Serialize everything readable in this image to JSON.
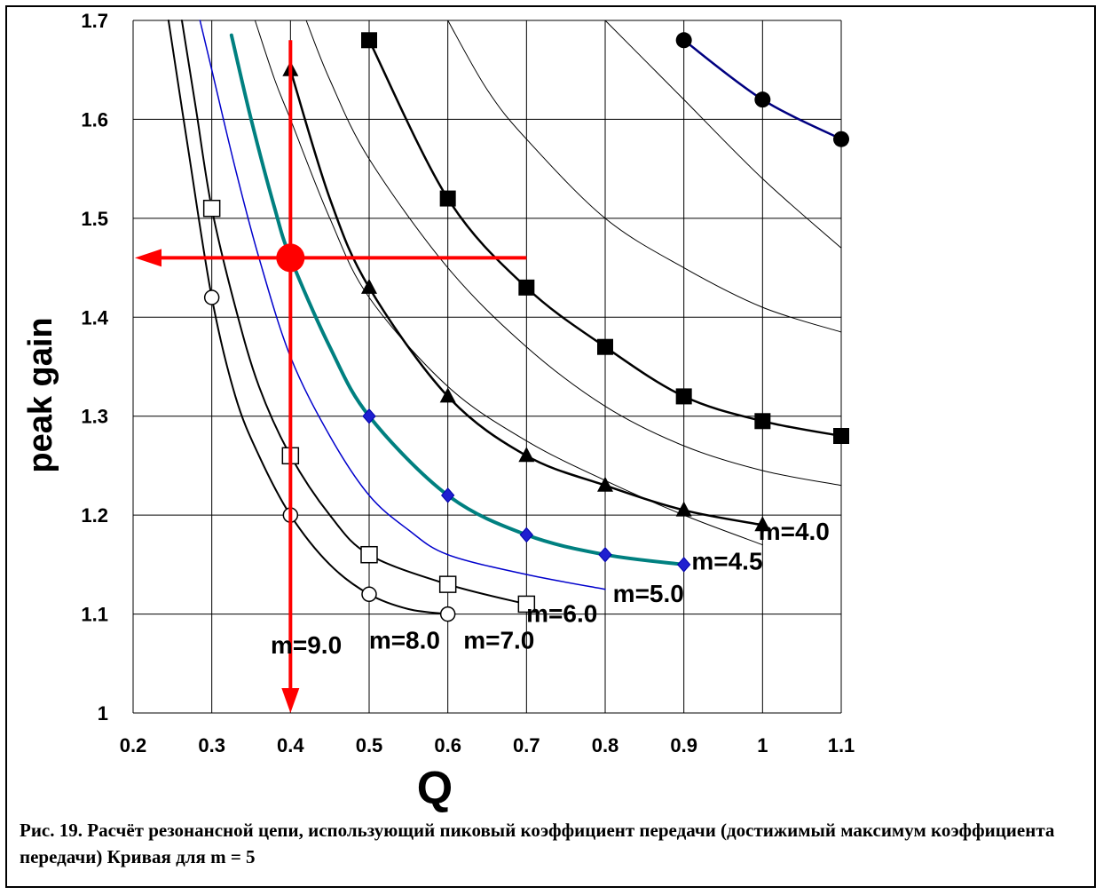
{
  "caption": "Рис. 19. Расчёт резонансной цепи, использующий пиковый коэффициент передачи (достижимый максимум коэффициента передачи) Кривая для m = 5",
  "chart_data": {
    "type": "line",
    "xlabel": "Q",
    "ylabel": "peak gain",
    "xlim": [
      0.2,
      1.1
    ],
    "ylim": [
      1.0,
      1.7
    ],
    "x_ticks": [
      "0.2",
      "0.3",
      "0.4",
      "0.5",
      "0.6",
      "0.7",
      "0.8",
      "0.9",
      "1",
      "1.1"
    ],
    "y_ticks": [
      "1",
      "1.1",
      "1.2",
      "1.3",
      "1.4",
      "1.5",
      "1.6",
      "1.7"
    ],
    "grid": true,
    "series": [
      {
        "name": "m=9.0",
        "color": "#000000",
        "marker": "open-circle",
        "width": 2,
        "x": [
          0.245,
          0.27,
          0.3,
          0.33,
          0.36,
          0.4,
          0.45,
          0.5,
          0.55,
          0.6
        ],
        "y": [
          1.7,
          1.57,
          1.42,
          1.32,
          1.26,
          1.2,
          1.15,
          1.12,
          1.105,
          1.1
        ],
        "markers_x": [
          0.3,
          0.4,
          0.5,
          0.6
        ],
        "markers_y": [
          1.42,
          1.2,
          1.12,
          1.1
        ]
      },
      {
        "name": "m=8.0",
        "color": "#000000",
        "marker": "open-square",
        "width": 2,
        "x": [
          0.262,
          0.28,
          0.3,
          0.33,
          0.36,
          0.4,
          0.45,
          0.5,
          0.6,
          0.7
        ],
        "y": [
          1.7,
          1.61,
          1.51,
          1.41,
          1.33,
          1.26,
          1.2,
          1.16,
          1.13,
          1.11
        ],
        "markers_x": [
          0.3,
          0.4,
          0.5,
          0.6,
          0.7
        ],
        "markers_y": [
          1.51,
          1.26,
          1.16,
          1.13,
          1.11
        ]
      },
      {
        "name": "m=7.0",
        "color": "#0000cc",
        "marker": "none",
        "width": 1.5,
        "x": [
          0.285,
          0.3,
          0.33,
          0.36,
          0.4,
          0.45,
          0.5,
          0.55,
          0.6,
          0.7,
          0.8
        ],
        "y": [
          1.7,
          1.65,
          1.55,
          1.46,
          1.36,
          1.28,
          1.22,
          1.185,
          1.16,
          1.14,
          1.125
        ]
      },
      {
        "name": "m=6.0",
        "color": "#008080",
        "marker": "diamond",
        "width": 4,
        "x": [
          0.325,
          0.35,
          0.38,
          0.4,
          0.45,
          0.5,
          0.6,
          0.7,
          0.8,
          0.9
        ],
        "y": [
          1.685,
          1.6,
          1.51,
          1.46,
          1.37,
          1.3,
          1.22,
          1.18,
          1.16,
          1.15
        ],
        "markers_x": [
          0.5,
          0.6,
          0.7,
          0.8,
          0.9
        ],
        "markers_y": [
          1.3,
          1.22,
          1.18,
          1.16,
          1.15
        ]
      },
      {
        "name": "m=5.0",
        "color": "#000000",
        "marker": "none",
        "width": 1,
        "x": [
          0.355,
          0.38,
          0.4,
          0.45,
          0.5,
          0.6,
          0.7,
          0.8,
          0.9,
          1.0
        ],
        "y": [
          1.7,
          1.64,
          1.6,
          1.5,
          1.42,
          1.33,
          1.275,
          1.235,
          1.2,
          1.17
        ]
      },
      {
        "name": "m=4.5",
        "color": "#000000",
        "marker": "triangle",
        "width": 2.5,
        "x": [
          0.4,
          0.45,
          0.5,
          0.6,
          0.7,
          0.8,
          0.9,
          1.0
        ],
        "y": [
          1.65,
          1.52,
          1.43,
          1.32,
          1.26,
          1.23,
          1.205,
          1.19
        ],
        "markers_x": [
          0.4,
          0.5,
          0.6,
          0.7,
          0.8,
          0.9,
          1.0
        ],
        "markers_y": [
          1.65,
          1.43,
          1.32,
          1.26,
          1.23,
          1.205,
          1.19
        ]
      },
      {
        "name": "m=4.0",
        "color": "#000000",
        "marker": "none",
        "width": 1,
        "x": [
          0.42,
          0.45,
          0.5,
          0.6,
          0.7,
          0.8,
          0.9,
          1.0,
          1.1
        ],
        "y": [
          1.7,
          1.64,
          1.56,
          1.45,
          1.37,
          1.31,
          1.27,
          1.245,
          1.23
        ]
      },
      {
        "name": "",
        "color": "#000000",
        "marker": "square",
        "width": 2.5,
        "x": [
          0.5,
          0.6,
          0.7,
          0.8,
          0.9,
          1.0,
          1.1
        ],
        "y": [
          1.68,
          1.52,
          1.43,
          1.37,
          1.32,
          1.295,
          1.28
        ],
        "markers_x": [
          0.5,
          0.6,
          0.7,
          0.8,
          0.9,
          1.0,
          1.1
        ],
        "markers_y": [
          1.68,
          1.52,
          1.43,
          1.37,
          1.32,
          1.295,
          1.28
        ]
      },
      {
        "name": "",
        "color": "#000000",
        "marker": "none",
        "width": 1,
        "x": [
          0.6,
          0.65,
          0.7,
          0.8,
          0.9,
          1.0,
          1.1
        ],
        "y": [
          1.7,
          1.63,
          1.58,
          1.5,
          1.45,
          1.41,
          1.385
        ]
      },
      {
        "name": "",
        "color": "#000000",
        "marker": "none",
        "width": 1,
        "x": [
          0.8,
          0.85,
          0.9,
          1.0,
          1.1
        ],
        "y": [
          1.7,
          1.66,
          1.62,
          1.54,
          1.47
        ]
      },
      {
        "name": "",
        "color": "#000080",
        "marker": "filled-circle",
        "width": 2.5,
        "x": [
          0.9,
          1.0,
          1.1
        ],
        "y": [
          1.68,
          1.62,
          1.58
        ],
        "markers_x": [
          0.9,
          1.0,
          1.1
        ],
        "markers_y": [
          1.68,
          1.62,
          1.58
        ]
      }
    ],
    "labels": [
      {
        "text": "m=9.0",
        "x": 0.42,
        "y": 1.06
      },
      {
        "text": "m=8.0",
        "x": 0.545,
        "y": 1.065
      },
      {
        "text": "m=7.0",
        "x": 0.665,
        "y": 1.065
      },
      {
        "text": "m=6.0",
        "x": 0.745,
        "y": 1.092
      },
      {
        "text": "m=5.0",
        "x": 0.855,
        "y": 1.112
      },
      {
        "text": "m=4.5",
        "x": 0.955,
        "y": 1.145
      },
      {
        "text": "m=4.0",
        "x": 1.04,
        "y": 1.175
      }
    ],
    "annotation": {
      "color": "#ff0000",
      "point": {
        "x": 0.4,
        "y": 1.46
      },
      "vertical_from_y": 1.68,
      "vertical_to_y": 1.0,
      "horizontal_from_x": 0.7,
      "horizontal_to_x": 0.2
    }
  }
}
